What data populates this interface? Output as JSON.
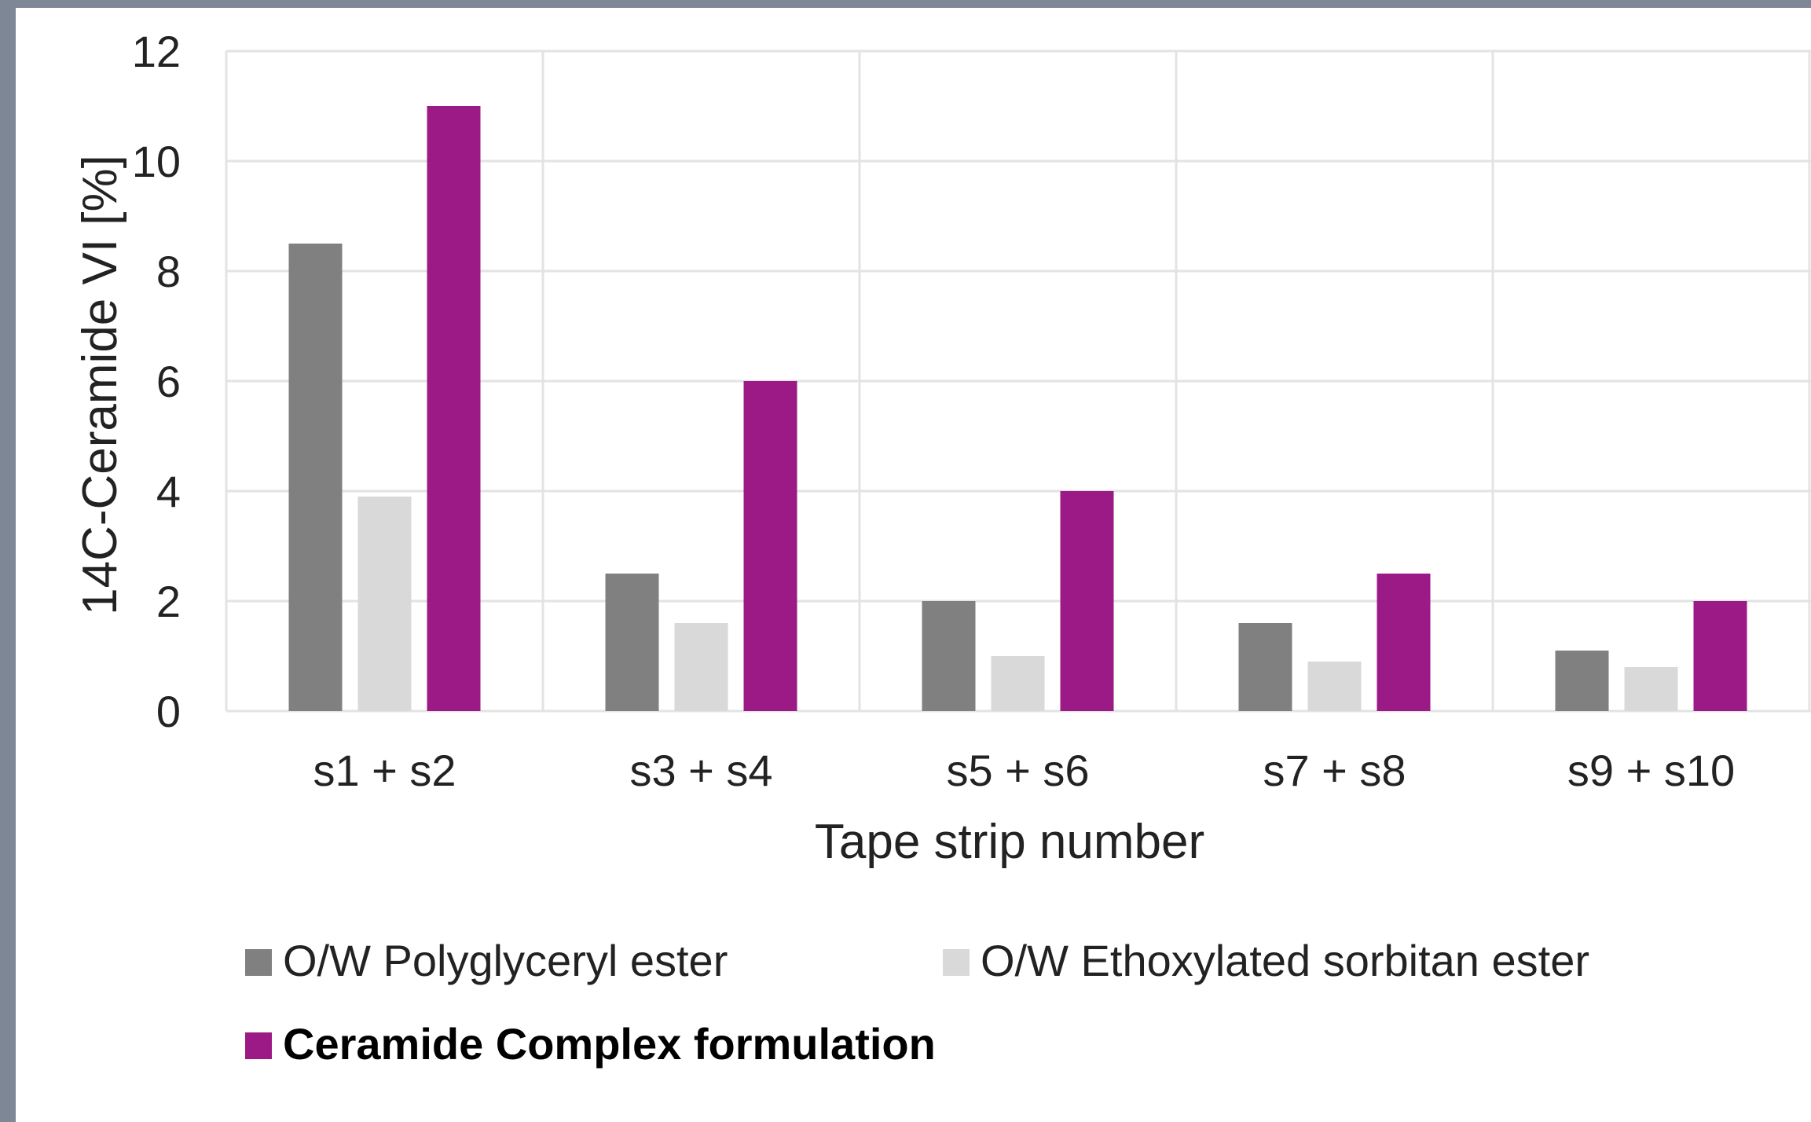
{
  "chart_data": {
    "type": "bar",
    "categories": [
      "s1 + s2",
      "s3 + s4",
      "s5 + s6",
      "s7 + s8",
      "s9 + s10"
    ],
    "series": [
      {
        "name": "O/W Polyglyceryl ester",
        "values": [
          8.5,
          2.5,
          2.0,
          1.6,
          1.1
        ],
        "color": "#808080"
      },
      {
        "name": "O/W Ethoxylated sorbitan ester",
        "values": [
          3.9,
          1.6,
          1.0,
          0.9,
          0.8
        ],
        "color": "#d9d9d9"
      },
      {
        "name": "Ceramide Complex formulation",
        "values": [
          11.0,
          6.0,
          4.0,
          2.5,
          2.0
        ],
        "color": "#9b1a85"
      }
    ],
    "xlabel": "Tape strip number",
    "ylabel": "14C-Ceramide VI [%]",
    "ylim": [
      0,
      12
    ],
    "yticks": [
      0,
      2,
      4,
      6,
      8,
      10,
      12
    ],
    "grid": true,
    "legend": "bottom"
  }
}
